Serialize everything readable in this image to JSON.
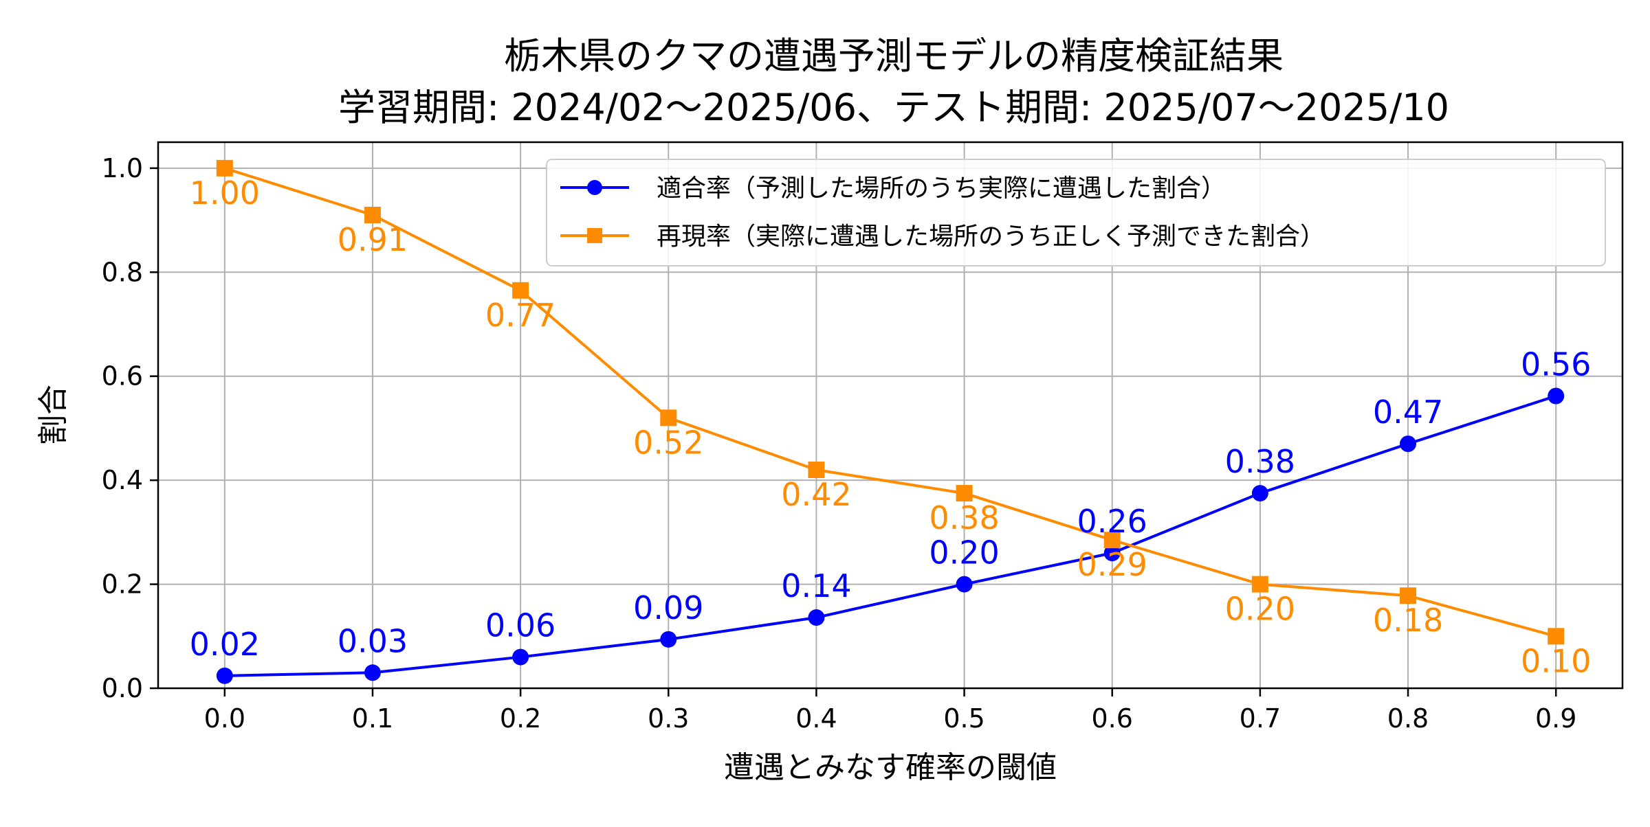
{
  "chart_data": {
    "type": "line",
    "title_line1": "栃木県のクマの遭遇予測モデルの精度検証結果",
    "title_line2": "学習期間: 2024/02〜2025/06、テスト期間: 2025/07〜2025/10",
    "xlabel": "遭遇とみなす確率の閾値",
    "ylabel": "割合",
    "x": [
      0.0,
      0.1,
      0.2,
      0.3,
      0.4,
      0.5,
      0.6,
      0.7,
      0.8,
      0.9
    ],
    "x_tick_labels": [
      "0.0",
      "0.1",
      "0.2",
      "0.3",
      "0.4",
      "0.5",
      "0.6",
      "0.7",
      "0.8",
      "0.9"
    ],
    "y_ticks": [
      0.0,
      0.2,
      0.4,
      0.6,
      0.8,
      1.0
    ],
    "y_tick_labels": [
      "0.0",
      "0.2",
      "0.4",
      "0.6",
      "0.8",
      "1.0"
    ],
    "xlim": [
      -0.045,
      0.945
    ],
    "ylim": [
      0.0,
      1.05
    ],
    "grid": true,
    "legend_position": "top-right",
    "series": [
      {
        "name": "適合率（予測した場所のうち実際に遭遇した割合）",
        "color": "#0000ff",
        "marker": "circle",
        "label_position": "above",
        "values": [
          0.024,
          0.03,
          0.06,
          0.094,
          0.136,
          0.2,
          0.26,
          0.375,
          0.47,
          0.562
        ],
        "labels": [
          "0.02",
          "0.03",
          "0.06",
          "0.09",
          "0.14",
          "0.20",
          "0.26",
          "0.38",
          "0.47",
          "0.56"
        ]
      },
      {
        "name": "再現率（実際に遭遇した場所のうち正しく予測できた割合）",
        "color": "#ff8c00",
        "marker": "square",
        "label_position": "below",
        "values": [
          1.0,
          0.91,
          0.765,
          0.52,
          0.42,
          0.375,
          0.285,
          0.2,
          0.178,
          0.1
        ],
        "labels": [
          "1.00",
          "0.91",
          "0.77",
          "0.52",
          "0.42",
          "0.38",
          "0.29",
          "0.20",
          "0.18",
          "0.10"
        ]
      }
    ]
  }
}
